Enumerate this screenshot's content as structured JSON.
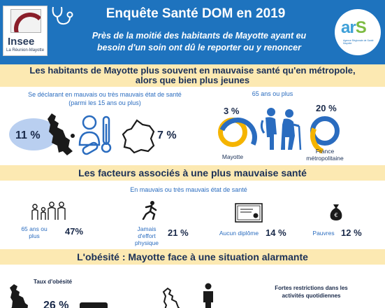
{
  "header": {
    "title": "Enquête Santé DOM en 2019",
    "subtitle_line1": "Près de la moitié des habitants de Mayotte ayant eu",
    "subtitle_line2": "besoin d'un soin ont dû le reporter ou y renoncer",
    "insee_name": "Insee",
    "insee_sub": "La Réunion-Mayotte",
    "ars_name_a": "ar",
    "ars_name_b": "S",
    "ars_sub": "Agence Régionale de Santé Mayotte"
  },
  "section1": {
    "title_line1": "Les habitants de Mayotte plus souvent en mauvaise santé qu'en métropole,",
    "title_line2": "alors que bien plus jeunes",
    "left_label_line1": "Se déclarant en mauvais ou très mauvais état de santé",
    "left_label_line2": "(parmi les 15 ans ou plus)",
    "mayotte_pct": "11 %",
    "metropole_pct": "7 %",
    "right_label": "65 ans ou plus",
    "mayotte65_pct": "3 %",
    "metropole65_pct": "20 %",
    "mayotte_name": "Mayotte",
    "metropole_name_line1": "France",
    "metropole_name_line2": "métropolitaine",
    "mayotte65_share": 0.03,
    "metropole65_share": 0.2
  },
  "section2": {
    "title": "Les facteurs associés à une plus mauvaise santé",
    "subtitle": "En mauvais ou très mauvais état de santé",
    "factors": [
      {
        "label_line1": "65 ans ou",
        "label_line2": "plus",
        "value": "47%"
      },
      {
        "label_line1": "Jamais d'effort",
        "label_line2": "physique",
        "value": "21 %"
      },
      {
        "label_line1": "Aucun diplôme",
        "label_line2": "",
        "value": "14 %"
      },
      {
        "label_line1": "Pauvres",
        "label_line2": "",
        "value": "12 %"
      }
    ]
  },
  "section3": {
    "title": "L'obésité : Mayotte face à une situation alarmante",
    "obesity_label": "Taux d'obésité",
    "obesity_pct": "26 %",
    "restrictions_line1": "Fortes restrictions dans les",
    "restrictions_line2": "activités quotidiennes"
  },
  "colors": {
    "header_blue": "#1e73be",
    "band_yellow": "#fce9b2",
    "accent_blue": "#2a6cbf",
    "accent_yellow": "#f5b400"
  }
}
